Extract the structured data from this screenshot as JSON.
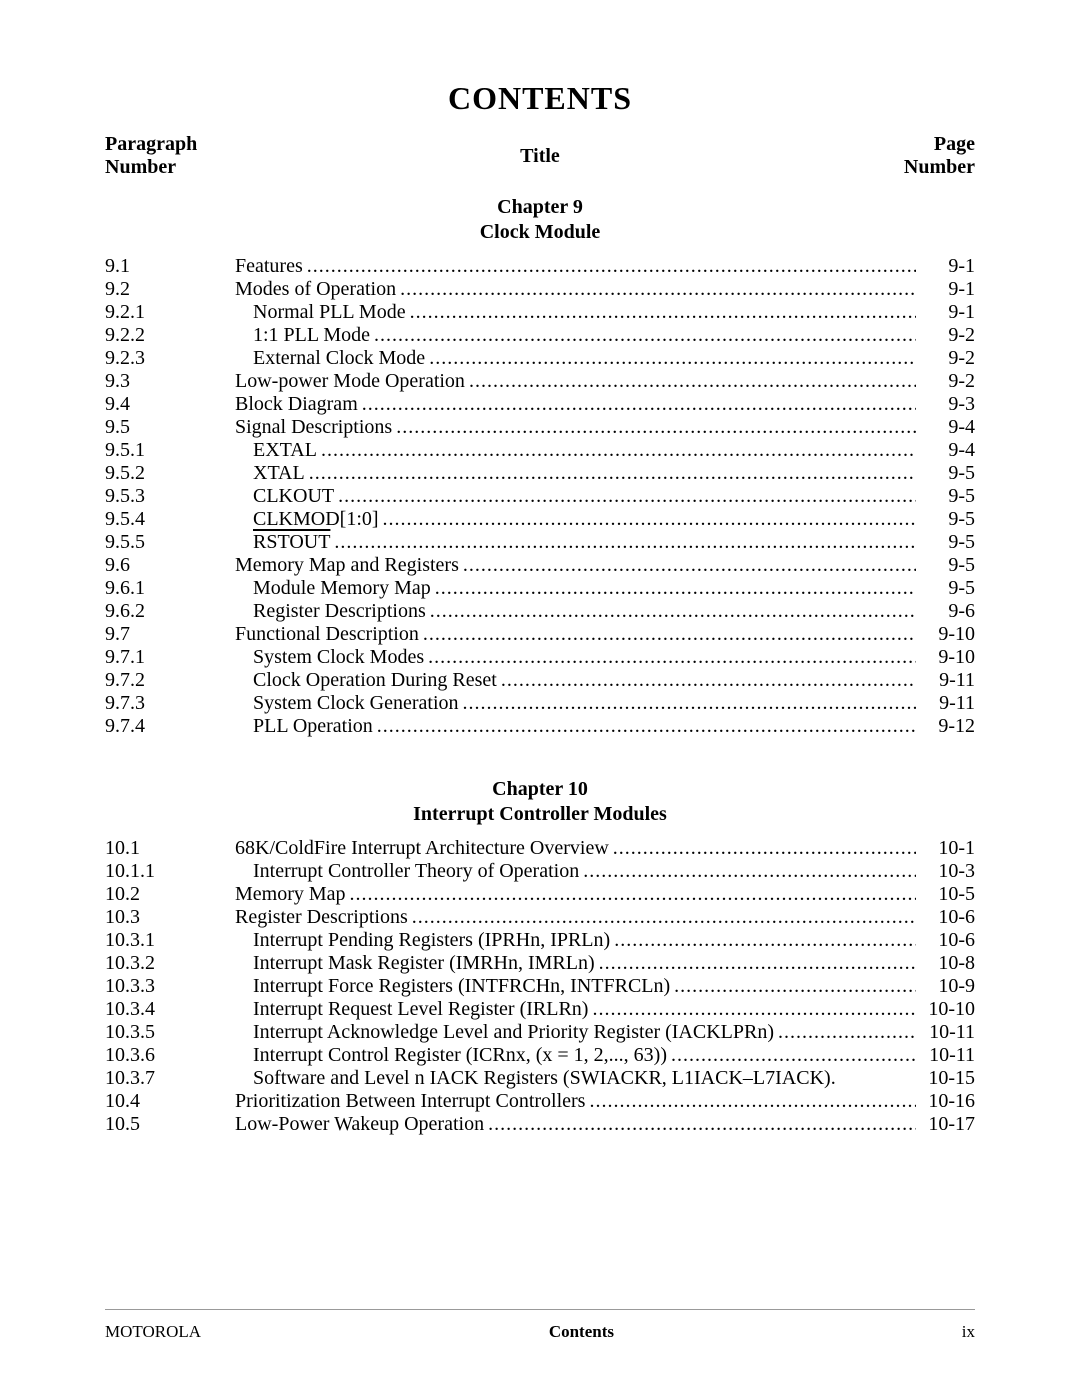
{
  "main_title": "CONTENTS",
  "headers": {
    "left_line1": "Paragraph",
    "left_line2": "Number",
    "center": "Title",
    "right_line1": "Page",
    "right_line2": "Number"
  },
  "chapters": [
    {
      "heading_line1": "Chapter 9",
      "heading_line2": "Clock Module",
      "entries": [
        {
          "num": "9.1",
          "title": "Features",
          "page": "9-1",
          "indent": 0
        },
        {
          "num": "9.2",
          "title": "Modes of Operation",
          "page": "9-1",
          "indent": 0
        },
        {
          "num": "9.2.1",
          "title": "Normal PLL Mode",
          "page": "9-1",
          "indent": 1
        },
        {
          "num": "9.2.2",
          "title": "1:1 PLL Mode",
          "page": "9-2",
          "indent": 1
        },
        {
          "num": "9.2.3",
          "title": "External Clock Mode",
          "page": "9-2",
          "indent": 1
        },
        {
          "num": "9.3",
          "title": "Low-power Mode Operation",
          "page": "9-2",
          "indent": 0
        },
        {
          "num": "9.4",
          "title": "Block Diagram",
          "page": "9-3",
          "indent": 0
        },
        {
          "num": "9.5",
          "title": "Signal Descriptions",
          "page": "9-4",
          "indent": 0
        },
        {
          "num": "9.5.1",
          "title": "EXTAL",
          "page": "9-4",
          "indent": 1
        },
        {
          "num": "9.5.2",
          "title": "XTAL",
          "page": "9-5",
          "indent": 1
        },
        {
          "num": "9.5.3",
          "title": "CLKOUT",
          "page": "9-5",
          "indent": 1
        },
        {
          "num": "9.5.4",
          "title": "CLKMOD[1:0]",
          "page": "9-5",
          "indent": 1
        },
        {
          "num": "9.5.5",
          "title": "RSTOUT",
          "page": "9-5",
          "indent": 1,
          "overline": true
        },
        {
          "num": "9.6",
          "title": "Memory Map and Registers",
          "page": "9-5",
          "indent": 0
        },
        {
          "num": "9.6.1",
          "title": "Module Memory Map",
          "page": "9-5",
          "indent": 1
        },
        {
          "num": "9.6.2",
          "title": "Register Descriptions",
          "page": "9-6",
          "indent": 1
        },
        {
          "num": "9.7",
          "title": "Functional Description",
          "page": "9-10",
          "indent": 0
        },
        {
          "num": "9.7.1",
          "title": "System Clock Modes",
          "page": "9-10",
          "indent": 1
        },
        {
          "num": "9.7.2",
          "title": "Clock Operation During Reset",
          "page": "9-11",
          "indent": 1
        },
        {
          "num": "9.7.3",
          "title": "System Clock Generation",
          "page": "9-11",
          "indent": 1
        },
        {
          "num": "9.7.4",
          "title": "PLL Operation",
          "page": "9-12",
          "indent": 1
        }
      ]
    },
    {
      "heading_line1": "Chapter 10",
      "heading_line2": "Interrupt Controller Modules",
      "entries": [
        {
          "num": "10.1",
          "title": "68K/ColdFire Interrupt Architecture Overview",
          "page": "10-1",
          "indent": 0
        },
        {
          "num": "10.1.1",
          "title": "Interrupt Controller Theory of Operation",
          "page": "10-3",
          "indent": 1
        },
        {
          "num": "10.2",
          "title": "Memory Map",
          "page": "10-5",
          "indent": 0
        },
        {
          "num": "10.3",
          "title": "Register Descriptions",
          "page": "10-6",
          "indent": 0
        },
        {
          "num": "10.3.1",
          "title": "Interrupt Pending Registers (IPRHn, IPRLn)",
          "page": "10-6",
          "indent": 1
        },
        {
          "num": "10.3.2",
          "title": "Interrupt Mask Register (IMRHn, IMRLn)",
          "page": "10-8",
          "indent": 1
        },
        {
          "num": "10.3.3",
          "title": "Interrupt Force Registers (INTFRCHn, INTFRCLn)",
          "page": "10-9",
          "indent": 1
        },
        {
          "num": "10.3.4",
          "title": "Interrupt Request Level Register (IRLRn)",
          "page": "10-10",
          "indent": 1
        },
        {
          "num": "10.3.5",
          "title": "Interrupt Acknowledge Level and Priority Register (IACKLPRn)",
          "page": "10-11",
          "indent": 1
        },
        {
          "num": "10.3.6",
          "title": "Interrupt Control Register (ICRnx, (x = 1, 2,..., 63))",
          "page": "10-11",
          "indent": 1
        },
        {
          "num": "10.3.7",
          "title": "Software and Level n IACK Registers (SWIACKR, L1IACK–L7IACK)",
          "page": "10-15",
          "indent": 1,
          "noleader": true
        },
        {
          "num": "10.4",
          "title": "Prioritization Between Interrupt Controllers",
          "page": "10-16",
          "indent": 0
        },
        {
          "num": "10.5",
          "title": "Low-Power Wakeup Operation",
          "page": "10-17",
          "indent": 0
        }
      ]
    }
  ],
  "footer": {
    "left": "MOTOROLA",
    "center": "Contents",
    "right": "ix"
  }
}
